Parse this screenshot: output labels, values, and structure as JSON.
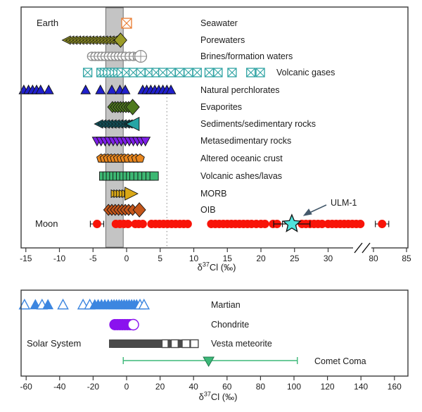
{
  "chart_data": [
    {
      "type": "scatter",
      "panel": "top",
      "row_group_labels": [
        {
          "text": "Earth"
        },
        {
          "text": "Moon"
        }
      ],
      "xlabel": {
        "prefix": "δ",
        "sup": "37",
        "suffix": "Cl (‰)"
      },
      "x_ticks": [
        -15,
        -10,
        -5,
        0,
        5,
        10,
        15,
        20,
        25,
        30,
        80,
        85
      ],
      "axis_break_between": [
        30,
        80
      ],
      "xlim": [
        -15.7,
        85
      ],
      "grid": false,
      "reference_band": {
        "x_from": -3.1,
        "x_to": -0.5,
        "fill": "#c4c4c4",
        "edge": "#6e6e6e"
      },
      "dashed_line_x": 6,
      "series": [
        {
          "label": "Seawater",
          "shape": "square-x",
          "color": "#e87a2e",
          "values": [
            0
          ]
        },
        {
          "label": "Porewaters",
          "shape": "triangle-left",
          "color": "#9c9c28",
          "values": [
            -8.9,
            -8.4,
            -7.9,
            -7.4,
            -6.9,
            -6.4,
            -5.9,
            -5.4,
            -4.9,
            -4.4,
            -3.9,
            -3.4,
            -2.9,
            -2.4,
            -1.9,
            -1.4
          ],
          "accent": {
            "value": -0.9,
            "scale": 1.3,
            "shape": "diamond"
          }
        },
        {
          "label": "Brines/formation waters",
          "shape": "circle-plus",
          "color": "#8c8c8c",
          "values": [
            -5.2,
            -4.7,
            -4.2,
            -3.7,
            -3.2,
            -2.7,
            -2.2,
            -1.7,
            -1.2,
            -0.7,
            -0.2,
            0.4,
            1.0,
            1.6
          ],
          "accent": {
            "value": 2.1,
            "scale": 1.4
          }
        },
        {
          "label": "Volcanic gases",
          "shape": "square-x",
          "color": "#2fa3a3",
          "values": [
            -5.8,
            -3.8,
            -3.3,
            -2.8,
            -2.3,
            -1.8,
            -1.3,
            -0.8,
            0,
            1,
            2.1,
            3.4,
            4.4,
            5.4,
            6.6,
            7.9,
            9.2,
            10.5,
            12.3,
            13.6,
            15.7,
            18.5,
            19.9
          ]
        },
        {
          "label": "Natural perchlorates",
          "shape": "triangle-up",
          "color": "#2020cc",
          "values": [
            -15.3,
            -14.6,
            -14.0,
            -13.4,
            -12.8,
            -11.6,
            -6.1,
            -3.9,
            -2.2,
            -1.0,
            -0.2,
            2.4,
            3.0,
            3.6,
            4.2,
            4.8,
            5.4,
            6.0,
            6.6
          ]
        },
        {
          "label": "Evaporites",
          "shape": "diamond",
          "color": "#4f7a1f",
          "values": [
            -2.1,
            -1.7,
            -1.3,
            -0.9,
            -0.5,
            -0.1,
            0.3
          ],
          "accent": {
            "value": 0.9,
            "scale": 1.4
          }
        },
        {
          "label": "Sediments/sedimentary rocks",
          "shape": "triangle-left",
          "color": "#14616b",
          "values": [
            -4.1,
            -3.6,
            -3.1,
            -2.6,
            -2.1,
            -1.6,
            -1.1,
            -0.6,
            -0.1,
            0.3
          ],
          "accent": {
            "value": 1.0,
            "scale": 1.6,
            "color": "#27a5a5"
          }
        },
        {
          "label": "Metasedimentary rocks",
          "shape": "triangle-down",
          "color": "#7d1fe8",
          "values": [
            -4.4,
            -3.8,
            -3.2,
            -2.6,
            -2.0,
            -1.4,
            -0.8,
            -0.2,
            0.4,
            1.0,
            1.6,
            2.2,
            2.8
          ]
        },
        {
          "label": "Altered oceanic crust",
          "shape": "pentagon",
          "color": "#e8861e",
          "values": [
            -3.8,
            -3.3,
            -2.8,
            -2.3,
            -1.8,
            -1.3,
            -0.8,
            -0.3,
            0.2,
            0.8,
            1.4,
            2.0
          ]
        },
        {
          "label": "Volcanic ashes/lavas",
          "shape": "square",
          "color": "#3db873",
          "values": [
            -3.4,
            -2.9,
            -2.4,
            -1.9,
            -1.4,
            -0.9,
            -0.4,
            0.1,
            0.6,
            1.1,
            1.7,
            2.3,
            2.9,
            3.5,
            4.1
          ]
        },
        {
          "label": "MORB",
          "shape": "triangle-right",
          "color": "#d9a818",
          "values": [
            -1.8,
            -1.4,
            -1.0,
            -0.6,
            -0.2,
            0.2
          ],
          "accent": {
            "value": 0.6,
            "scale": 1.7
          }
        },
        {
          "label": "OIB",
          "shape": "diamond",
          "color": "#c4561a",
          "values": [
            -2.7,
            -2.2,
            -1.7,
            -1.2,
            -0.7,
            -0.2,
            0.3,
            0.9
          ],
          "accent": {
            "value": 1.9,
            "scale": 1.3
          }
        },
        {
          "label": null,
          "group": "Moon",
          "shape": "circle",
          "color": "#f81409",
          "edge": "none",
          "values": [
            -4.4,
            -1.6,
            -1.0,
            -0.4,
            0.2,
            1.3,
            1.8,
            2.4,
            3.7,
            4.3,
            4.9,
            5.5,
            6.1,
            6.7,
            7.3,
            7.9,
            8.5,
            9.1,
            12.6,
            13.2,
            13.8,
            14.4,
            15.0,
            15.6,
            16.2,
            16.8,
            17.4,
            18.0,
            18.6,
            19.3,
            20.0,
            20.6,
            21.8,
            22.4,
            26.1,
            26.7,
            27.3,
            27.9,
            28.5,
            29.1,
            30.0,
            30.6,
            31.2,
            31.8,
            32.4,
            33.0,
            33.6,
            34.2,
            34.8,
            81.3
          ],
          "errors": [
            [
              -4.4,
              1.0
            ],
            [
              21.8,
              1.4
            ],
            [
              26.1,
              0.9
            ],
            [
              31.8,
              0.9
            ],
            [
              81.3,
              1.0
            ]
          ]
        }
      ],
      "annotation": {
        "text": "ULM-1",
        "value": 24.6,
        "error": 2.7,
        "marker": "star",
        "color": "#4fe3dc"
      }
    },
    {
      "type": "scatter",
      "panel": "bottom",
      "row_group_labels": [
        {
          "text": "Solar System"
        }
      ],
      "xlabel": {
        "prefix": "δ",
        "sup": "37",
        "suffix": "Cl (‰)"
      },
      "x_ticks": [
        -60,
        -40,
        -20,
        0,
        20,
        40,
        60,
        80,
        100,
        120,
        140,
        160
      ],
      "xlim": [
        -63,
        168
      ],
      "grid": false,
      "series": [
        {
          "label": "Martian",
          "shape": "triangle-up",
          "color": "#3c86e0",
          "edge": "none",
          "values": [
            -61,
            -54.5,
            -50.5,
            -47,
            -38,
            -26,
            -22,
            -19,
            -17,
            -15,
            -13,
            -11,
            -9,
            -7.5,
            -6,
            -4.5,
            -3,
            -1.5,
            0,
            1.5,
            3,
            4.5,
            6,
            8,
            10.4
          ],
          "open": [
            1,
            0,
            1,
            0,
            1,
            1,
            1,
            0,
            0,
            0,
            0,
            0,
            0,
            0,
            0,
            0,
            0,
            0,
            0,
            0,
            0,
            0,
            0,
            1,
            1
          ]
        },
        {
          "label": "Chondrite",
          "shape": "circle",
          "color": "#8a12ee",
          "edge": "none",
          "values": [
            -7,
            -5.5,
            -4,
            -2.5,
            -1,
            0.5,
            2,
            4
          ],
          "open": [
            0,
            0,
            0,
            0,
            0,
            0,
            0,
            1
          ]
        },
        {
          "label": "Vesta meteorite",
          "shape": "square",
          "color": "#4a4a4a",
          "edge": "none",
          "values": [
            -8,
            -6.5,
            -5,
            -3.5,
            -2,
            -0.5,
            1,
            2.5,
            4,
            5.5,
            7,
            8.5,
            10,
            11.5,
            13,
            14.5,
            16,
            17.5,
            19,
            21.5,
            23.5,
            27,
            29,
            33,
            35.5,
            40.5
          ],
          "open": [
            0,
            0,
            0,
            0,
            0,
            0,
            0,
            0,
            0,
            0,
            0,
            0,
            0,
            0,
            0,
            0,
            0,
            0,
            0,
            0,
            1,
            0,
            1,
            0,
            1,
            1
          ]
        },
        {
          "label": "Comet Coma",
          "shape": "range",
          "color": "#3cb878",
          "range": [
            -2,
            102
          ],
          "center": 49
        }
      ]
    }
  ]
}
